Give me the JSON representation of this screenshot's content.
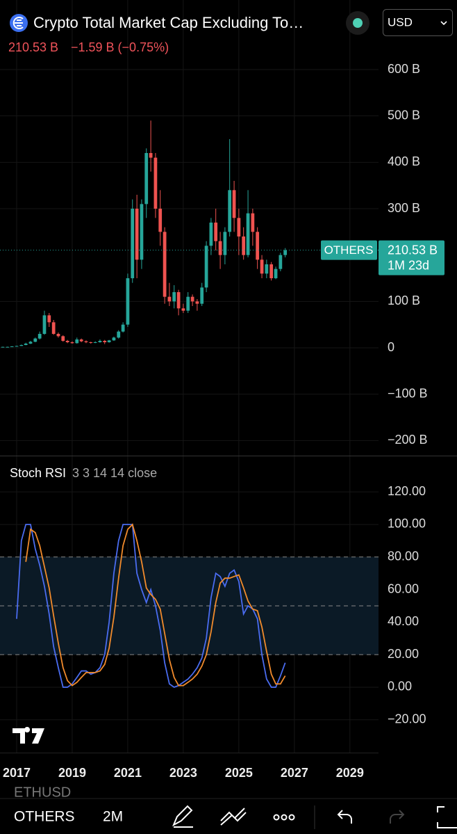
{
  "header": {
    "title": "Crypto Total Market Cap Excluding To…",
    "price": "210.53 B",
    "change": "−1.59 B (−0.75%)",
    "currency": "USD"
  },
  "price_tag": {
    "symbol": "OTHERS",
    "value": "210.53 B",
    "countdown": "1M 23d"
  },
  "toolbar": {
    "behind": "ETHUSD",
    "symbol": "OTHERS",
    "interval": "2M"
  },
  "chart_data": [
    {
      "type": "candlestick",
      "up_color": "#26a69a",
      "down_color": "#ef5350",
      "grid": true,
      "x": [
        2016.5,
        2016.67,
        2016.83,
        2017,
        2017.17,
        2017.33,
        2017.5,
        2017.67,
        2017.83,
        2018,
        2018.17,
        2018.33,
        2018.5,
        2018.67,
        2018.83,
        2019,
        2019.17,
        2019.33,
        2019.5,
        2019.67,
        2019.83,
        2020,
        2020.17,
        2020.33,
        2020.5,
        2020.67,
        2020.83,
        2021,
        2021.17,
        2021.33,
        2021.5,
        2021.67,
        2021.83,
        2022,
        2022.17,
        2022.33,
        2022.5,
        2022.67,
        2022.83,
        2023,
        2023.17,
        2023.33,
        2023.5,
        2023.67,
        2023.83,
        2024,
        2024.17,
        2024.33,
        2024.5,
        2024.67,
        2024.83,
        2025,
        2025.17,
        2025.33,
        2025.5,
        2025.67,
        2025.83,
        2026,
        2026.17,
        2026.33,
        2026.5,
        2026.67
      ],
      "open": [
        2,
        2,
        2,
        3,
        4,
        6,
        9,
        13,
        20,
        30,
        70,
        55,
        30,
        25,
        15,
        12,
        10,
        18,
        14,
        12,
        11,
        12,
        15,
        12,
        16,
        22,
        35,
        50,
        150,
        300,
        190,
        310,
        420,
        410,
        300,
        250,
        110,
        100,
        120,
        85,
        80,
        110,
        100,
        95,
        130,
        220,
        270,
        230,
        200,
        250,
        340,
        280,
        240,
        200,
        290,
        250,
        190,
        160,
        180,
        150,
        170,
        200
      ],
      "high": [
        2.5,
        2.6,
        3.5,
        4.5,
        7,
        11,
        15,
        22,
        35,
        80,
        75,
        60,
        33,
        27,
        17,
        14,
        22,
        20,
        16,
        13,
        14,
        18,
        17,
        17,
        24,
        38,
        55,
        160,
        320,
        330,
        320,
        430,
        490,
        420,
        340,
        260,
        140,
        135,
        125,
        95,
        120,
        115,
        105,
        140,
        230,
        280,
        300,
        250,
        260,
        450,
        360,
        300,
        260,
        340,
        300,
        260,
        200,
        190,
        185,
        175,
        205,
        215
      ],
      "low": [
        1.8,
        1.9,
        1.9,
        2.8,
        3.8,
        5.5,
        8,
        12,
        18,
        28,
        45,
        28,
        22,
        13,
        10,
        9,
        9,
        12,
        10,
        9,
        10,
        11,
        8,
        11,
        15,
        20,
        33,
        45,
        140,
        150,
        170,
        280,
        380,
        280,
        220,
        95,
        90,
        85,
        70,
        75,
        75,
        90,
        80,
        90,
        120,
        200,
        210,
        170,
        180,
        240,
        250,
        200,
        190,
        195,
        220,
        170,
        150,
        150,
        145,
        148,
        165,
        195
      ],
      "close": [
        2,
        2,
        3,
        4,
        6,
        9,
        13,
        20,
        30,
        70,
        55,
        30,
        25,
        15,
        12,
        10,
        18,
        14,
        12,
        11,
        12,
        15,
        12,
        16,
        22,
        35,
        50,
        150,
        300,
        190,
        310,
        420,
        410,
        300,
        250,
        110,
        100,
        120,
        85,
        80,
        110,
        100,
        95,
        130,
        220,
        270,
        230,
        200,
        250,
        340,
        280,
        240,
        200,
        290,
        250,
        190,
        160,
        180,
        150,
        170,
        200,
        210.53
      ],
      "xlim": [
        2016.4,
        2030.03
      ],
      "ylim": [
        -232.5,
        750
      ],
      "yticks": [
        {
          "value": 600,
          "label": "600 B"
        },
        {
          "value": 500,
          "label": "500 B"
        },
        {
          "value": 400,
          "label": "400 B"
        },
        {
          "value": 300,
          "label": "300 B"
        },
        {
          "value": 100,
          "label": "100 B"
        },
        0,
        {
          "value": -100,
          "label": "−100 B"
        },
        {
          "value": -200,
          "label": "−200 B"
        }
      ]
    },
    {
      "type": "line",
      "title": "Stoch RSI",
      "params": "3 3 14 14 close",
      "grid": true,
      "hlines": [
        80,
        50,
        20
      ],
      "band_color": "#0b1a26",
      "x": [
        2016.5,
        2016.67,
        2016.83,
        2017,
        2017.17,
        2017.33,
        2017.5,
        2017.67,
        2017.83,
        2018,
        2018.17,
        2018.33,
        2018.5,
        2018.67,
        2018.83,
        2019,
        2019.17,
        2019.33,
        2019.5,
        2019.67,
        2019.83,
        2020,
        2020.17,
        2020.33,
        2020.5,
        2020.67,
        2020.83,
        2021,
        2021.17,
        2021.33,
        2021.5,
        2021.67,
        2021.83,
        2022,
        2022.17,
        2022.33,
        2022.5,
        2022.67,
        2022.83,
        2023,
        2023.17,
        2023.33,
        2023.5,
        2023.67,
        2023.83,
        2024,
        2024.17,
        2024.33,
        2024.5,
        2024.67,
        2024.83,
        2025,
        2025.17,
        2025.33,
        2025.5,
        2025.67,
        2025.83,
        2026,
        2026.17,
        2026.33,
        2026.5,
        2026.67
      ],
      "series": [
        {
          "color": "#4a6cf0",
          "values": [
            null,
            null,
            null,
            42,
            90,
            100,
            100,
            85,
            75,
            62,
            45,
            25,
            12,
            0,
            0,
            2,
            6,
            10,
            10,
            8,
            9,
            12,
            20,
            40,
            70,
            90,
            100,
            100,
            100,
            70,
            60,
            52,
            60,
            50,
            35,
            15,
            2,
            0,
            1,
            3,
            5,
            8,
            12,
            18,
            30,
            55,
            70,
            68,
            62,
            70,
            72,
            65,
            45,
            50,
            48,
            42,
            20,
            5,
            0,
            0,
            7,
            15
          ]
        },
        {
          "color": "#f28b2c",
          "values": [
            null,
            null,
            null,
            null,
            null,
            77,
            97,
            95,
            87,
            74,
            61,
            44,
            27,
            12,
            4,
            1,
            3,
            6,
            9,
            9,
            9,
            10,
            14,
            24,
            43,
            67,
            87,
            97,
            100,
            90,
            77,
            61,
            57,
            54,
            48,
            33,
            17,
            6,
            1,
            1,
            3,
            5,
            8,
            13,
            20,
            34,
            52,
            64,
            67,
            67,
            68,
            69,
            61,
            53,
            48,
            47,
            37,
            22,
            8,
            2,
            2,
            7
          ]
        }
      ],
      "xlim": [
        2016.4,
        2030.03
      ],
      "ylim": [
        -40.2,
        142.3
      ],
      "xticks": [
        2017,
        2019,
        2021,
        2023,
        2025,
        2027,
        2029
      ],
      "yticks": [
        {
          "value": 120,
          "label": "120.00"
        },
        {
          "value": 100,
          "label": "100.00"
        },
        {
          "value": 80,
          "label": "80.00"
        },
        {
          "value": 60,
          "label": "60.00"
        },
        {
          "value": 40,
          "label": "40.00"
        },
        {
          "value": 20,
          "label": "20.00"
        },
        {
          "value": 0,
          "label": "0.00"
        },
        {
          "value": -20,
          "label": "−20.00"
        }
      ]
    }
  ]
}
